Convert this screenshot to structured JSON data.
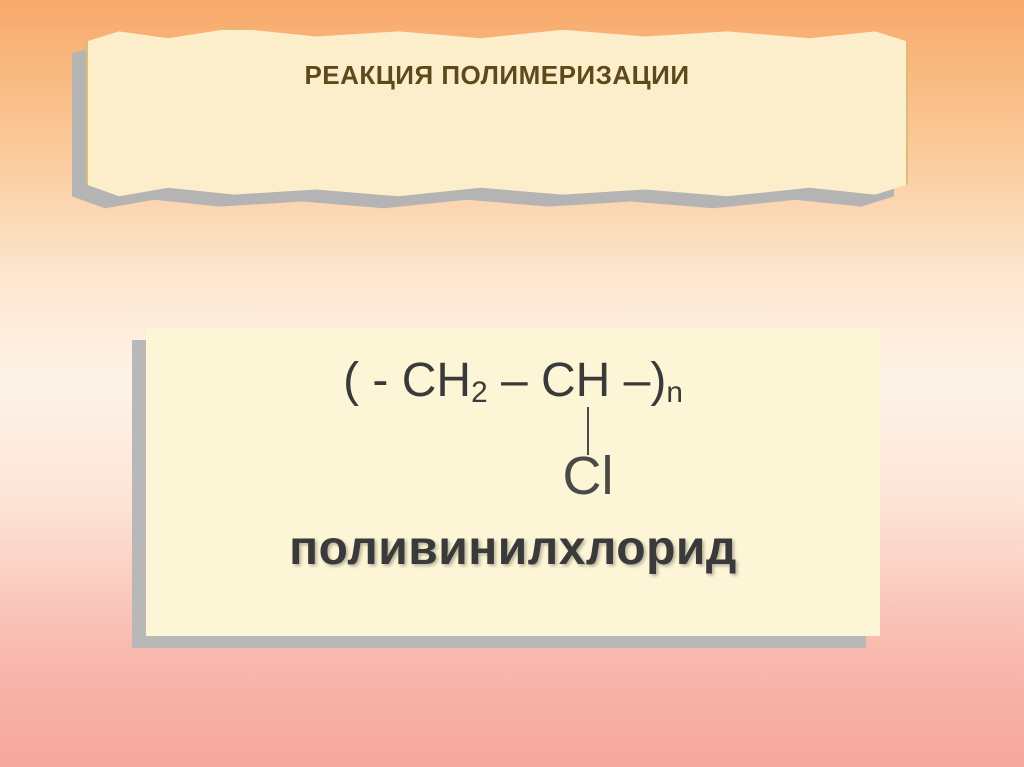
{
  "banner": {
    "title": "РЕАКЦИЯ ПОЛИМЕРИЗАЦИИ",
    "title_fontsize": 26,
    "title_color": "#5c4a1a",
    "fill_color": "#fceecb",
    "border_color": "#d8be77",
    "shadow_color": "#b4b4b4"
  },
  "card": {
    "fill_color": "#fdf6d6",
    "border_color": "#fdf6d6",
    "shadow_color": "#b8b8b8",
    "formula_top_html": "( - CH<sub>2</sub> – CH –)<sub>n</sub>",
    "formula_top_fontsize": 48,
    "formula_top_color": "#3a3a3a",
    "bond_color": "#4a4a4a",
    "cl_text": "Cl",
    "cl_fontsize": 54,
    "cl_color": "#4a4a4a",
    "name_text": "поливинилхлорид",
    "name_fontsize": 48,
    "name_color": "#3a3a3a"
  }
}
